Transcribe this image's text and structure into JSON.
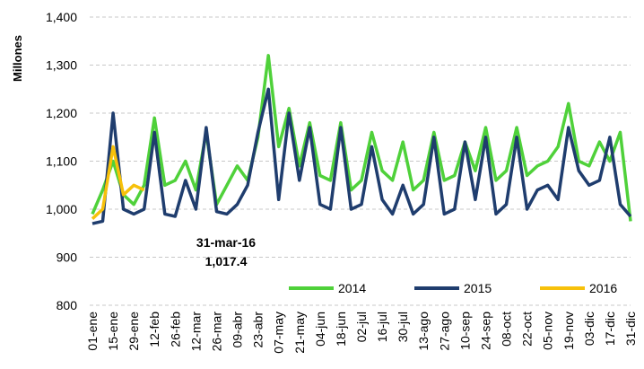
{
  "chart_data": {
    "type": "line",
    "y_label": "Millones",
    "ylim": [
      800,
      1400
    ],
    "yticks": [
      800,
      900,
      {
        "value": 1000,
        "label": "1,000"
      },
      {
        "value": 1100,
        "label": "1,100"
      },
      {
        "value": 1200,
        "label": "1,200"
      },
      {
        "value": 1300,
        "label": "1,300"
      },
      {
        "value": 1400,
        "label": "1,400"
      }
    ],
    "grid": true,
    "legend": "bottom-right",
    "annotation": {
      "date": "31-mar-16",
      "value": {
        "value": 1017.4,
        "label": "1,017.4"
      }
    },
    "categories": [
      "01-ene",
      null,
      "15-ene",
      null,
      "29-ene",
      null,
      "12-feb",
      null,
      "26-feb",
      null,
      "12-mar",
      null,
      "26-mar",
      null,
      "09-abr",
      null,
      "23-abr",
      null,
      "07-may",
      null,
      "21-may",
      null,
      "04-jun",
      null,
      "18-jun",
      null,
      "02-jul",
      null,
      "16-jul",
      null,
      "30-jul",
      null,
      "13-ago",
      null,
      "27-ago",
      null,
      "10-sep",
      null,
      "24-sep",
      null,
      "08-oct",
      null,
      "22-oct",
      null,
      "05-nov",
      null,
      "19-nov",
      null,
      "03-dic",
      null,
      "17-dic",
      null,
      "31-dic"
    ],
    "series": [
      {
        "name": "2014",
        "color": "#4fd13a",
        "values": [
          990,
          1040,
          1100,
          1030,
          1010,
          1050,
          1190,
          1050,
          1060,
          1100,
          1040,
          1160,
          1010,
          1050,
          1090,
          1060,
          1150,
          1320,
          1130,
          1210,
          1090,
          1180,
          1070,
          1060,
          1180,
          1040,
          1060,
          1160,
          1080,
          1060,
          1140,
          1040,
          1060,
          1160,
          1060,
          1070,
          1140,
          1080,
          1170,
          1060,
          1080,
          1170,
          1070,
          1090,
          1100,
          1130,
          1220,
          1100,
          1090,
          1140,
          1100,
          1160,
          975
        ]
      },
      {
        "name": "2015",
        "color": "#1f3d6e",
        "values": [
          970,
          975,
          1200,
          1000,
          990,
          1000,
          1160,
          990,
          985,
          1060,
          1000,
          1170,
          995,
          990,
          1010,
          1050,
          1160,
          1250,
          1020,
          1200,
          1060,
          1170,
          1010,
          1000,
          1170,
          1000,
          1010,
          1130,
          1020,
          990,
          1050,
          990,
          1010,
          1150,
          990,
          1000,
          1140,
          1020,
          1150,
          990,
          1010,
          1150,
          1000,
          1040,
          1050,
          1020,
          1170,
          1080,
          1050,
          1060,
          1150,
          1010,
          985
        ]
      },
      {
        "name": "2016",
        "color": "#f7c10a",
        "values": [
          980,
          1000,
          1130,
          1030,
          1050,
          1040,
          null,
          null,
          null,
          null,
          null,
          null,
          null,
          null,
          null,
          null,
          null,
          null,
          null,
          null,
          null,
          null,
          null,
          null,
          null,
          null,
          null,
          null,
          null,
          null,
          null,
          null,
          null,
          null,
          null,
          null,
          null,
          null,
          null,
          null,
          null,
          null,
          null,
          null,
          null,
          null,
          null,
          null,
          null,
          null,
          null,
          null,
          null
        ]
      }
    ]
  }
}
